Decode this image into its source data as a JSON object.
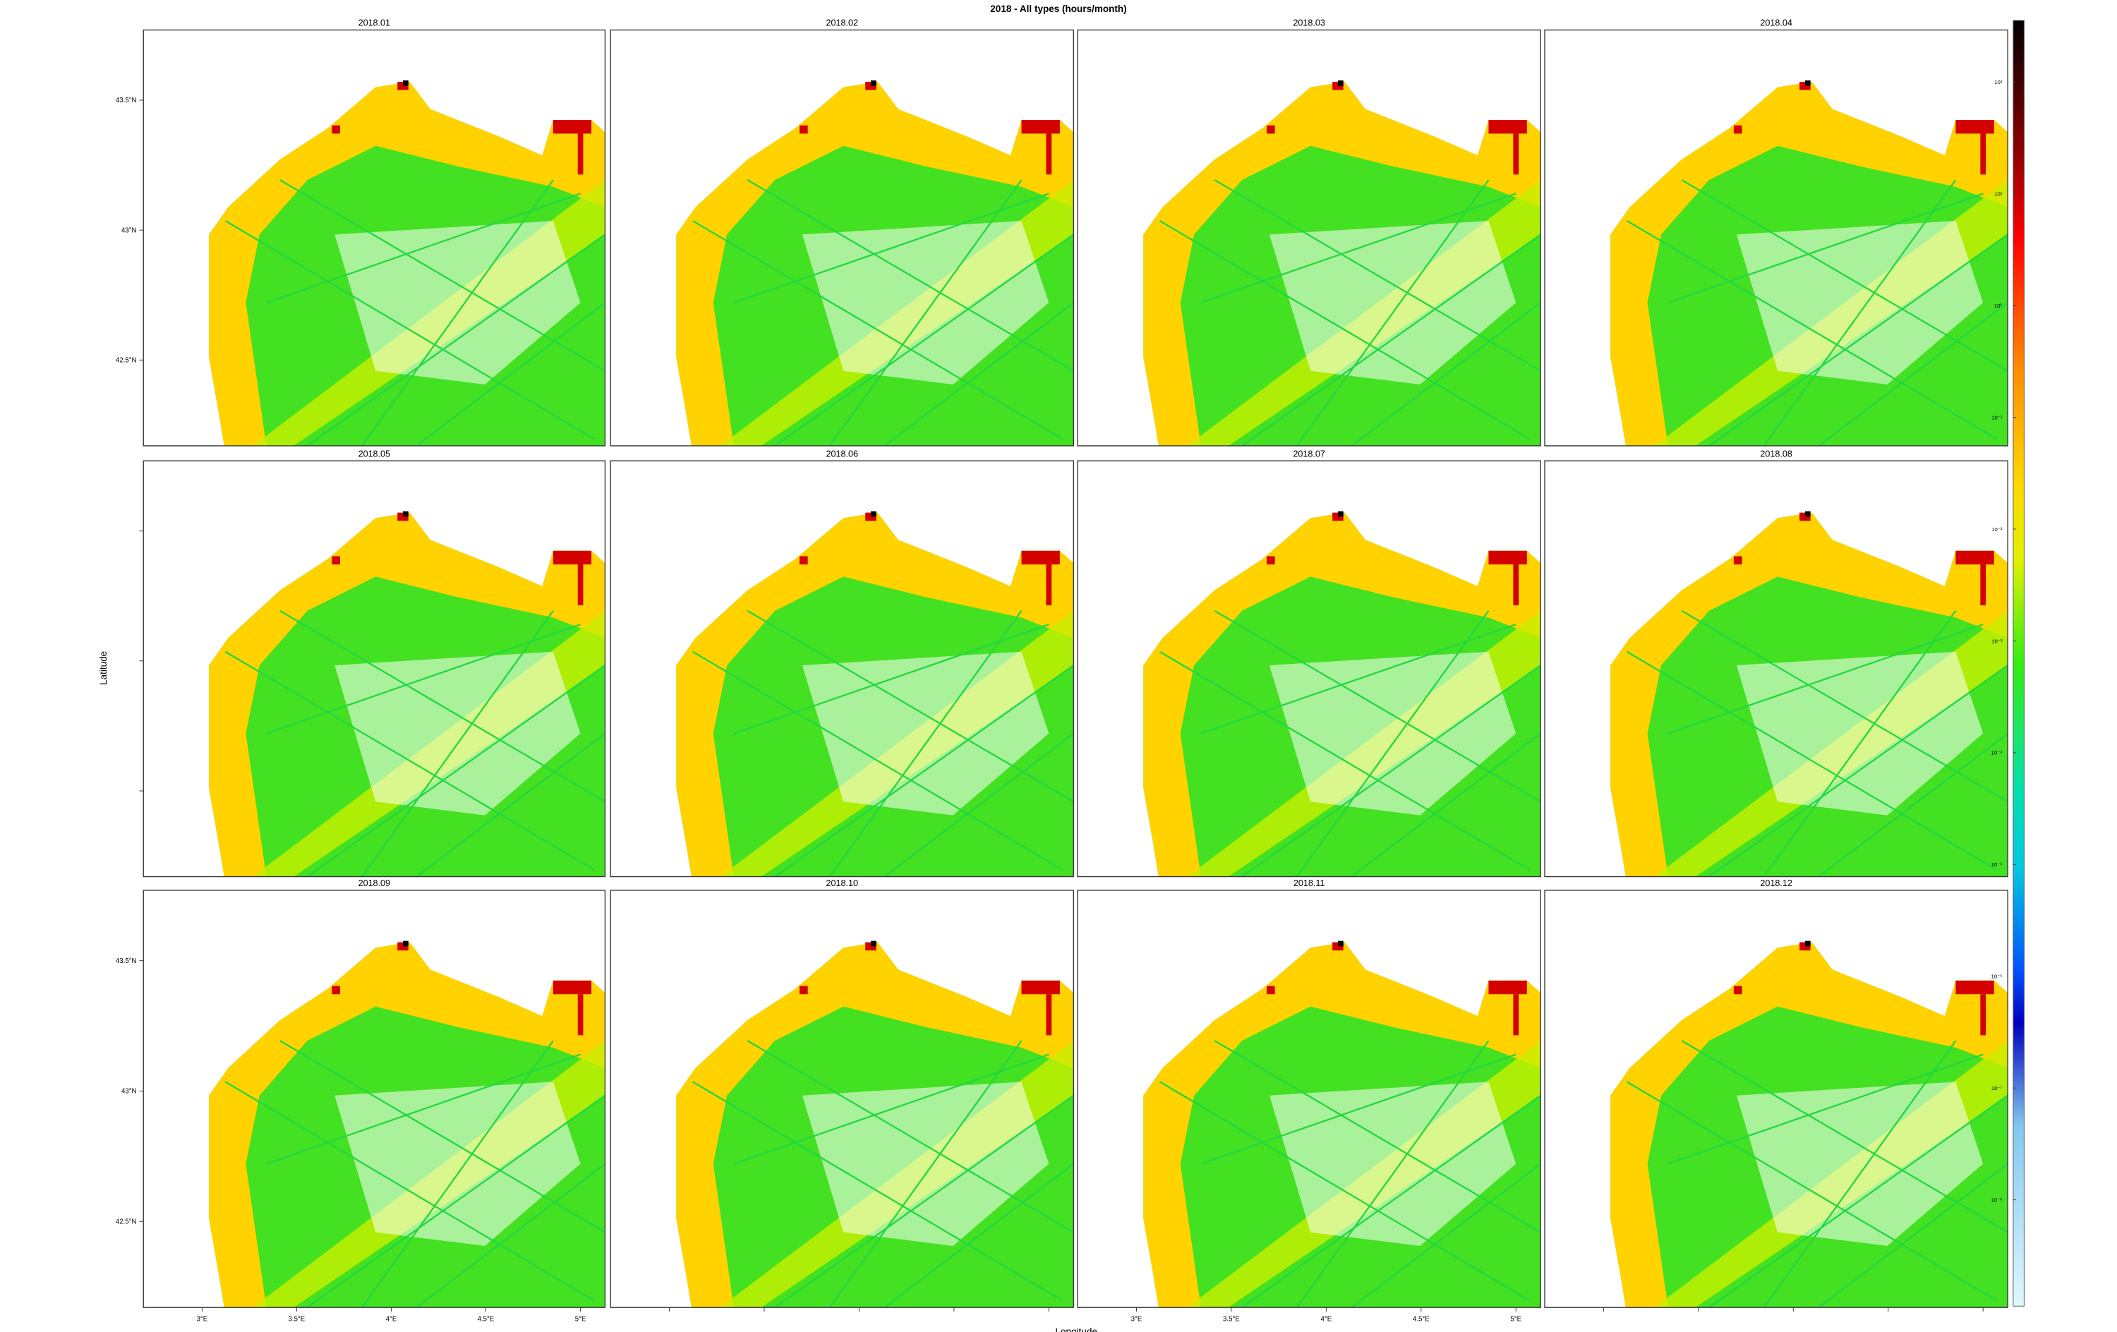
{
  "chart_data": {
    "type": "heatmap-grid",
    "title": "2018 - All types (hours/month)",
    "xlabel": "Longitude",
    "ylabel": "Latitude",
    "panels": [
      "2018.01",
      "2018.02",
      "2018.03",
      "2018.04",
      "2018.05",
      "2018.06",
      "2018.07",
      "2018.08",
      "2018.09",
      "2018.10",
      "2018.11",
      "2018.12"
    ],
    "xlim": [
      2.69,
      5.13
    ],
    "xticks": [
      {
        "value": 3,
        "label": "3°E"
      },
      {
        "value": 3.5,
        "label": "3.5°E"
      },
      {
        "value": 4,
        "label": "4°E"
      },
      {
        "value": 4.5,
        "label": "4.5°E"
      },
      {
        "value": 5,
        "label": "5°E"
      }
    ],
    "ylim": [
      42.17,
      43.77
    ],
    "yticks": [
      {
        "value": 43.5,
        "label": "43.5°N"
      },
      {
        "value": 43,
        "label": "43°N"
      },
      {
        "value": 42.5,
        "label": "42.5°N"
      }
    ],
    "colorbar": {
      "log_scale": true,
      "lim": [
        355,
        1.12e-09
      ],
      "ticks": [
        {
          "value": 100,
          "label": "10²"
        },
        {
          "value": 10,
          "label": "10¹"
        },
        {
          "value": 1,
          "label": "10⁰"
        },
        {
          "value": 0.1,
          "label": "10⁻¹"
        },
        {
          "value": 0.01,
          "label": "10⁻²"
        },
        {
          "value": 0.001,
          "label": "10⁻³"
        },
        {
          "value": 0.0001,
          "label": "10⁻⁴"
        },
        {
          "value": 1e-05,
          "label": "10⁻⁵"
        },
        {
          "value": 1e-06,
          "label": "10⁻⁶"
        },
        {
          "value": 1e-07,
          "label": "10⁻⁷"
        },
        {
          "value": 1e-08,
          "label": "10⁻⁸"
        }
      ]
    }
  }
}
